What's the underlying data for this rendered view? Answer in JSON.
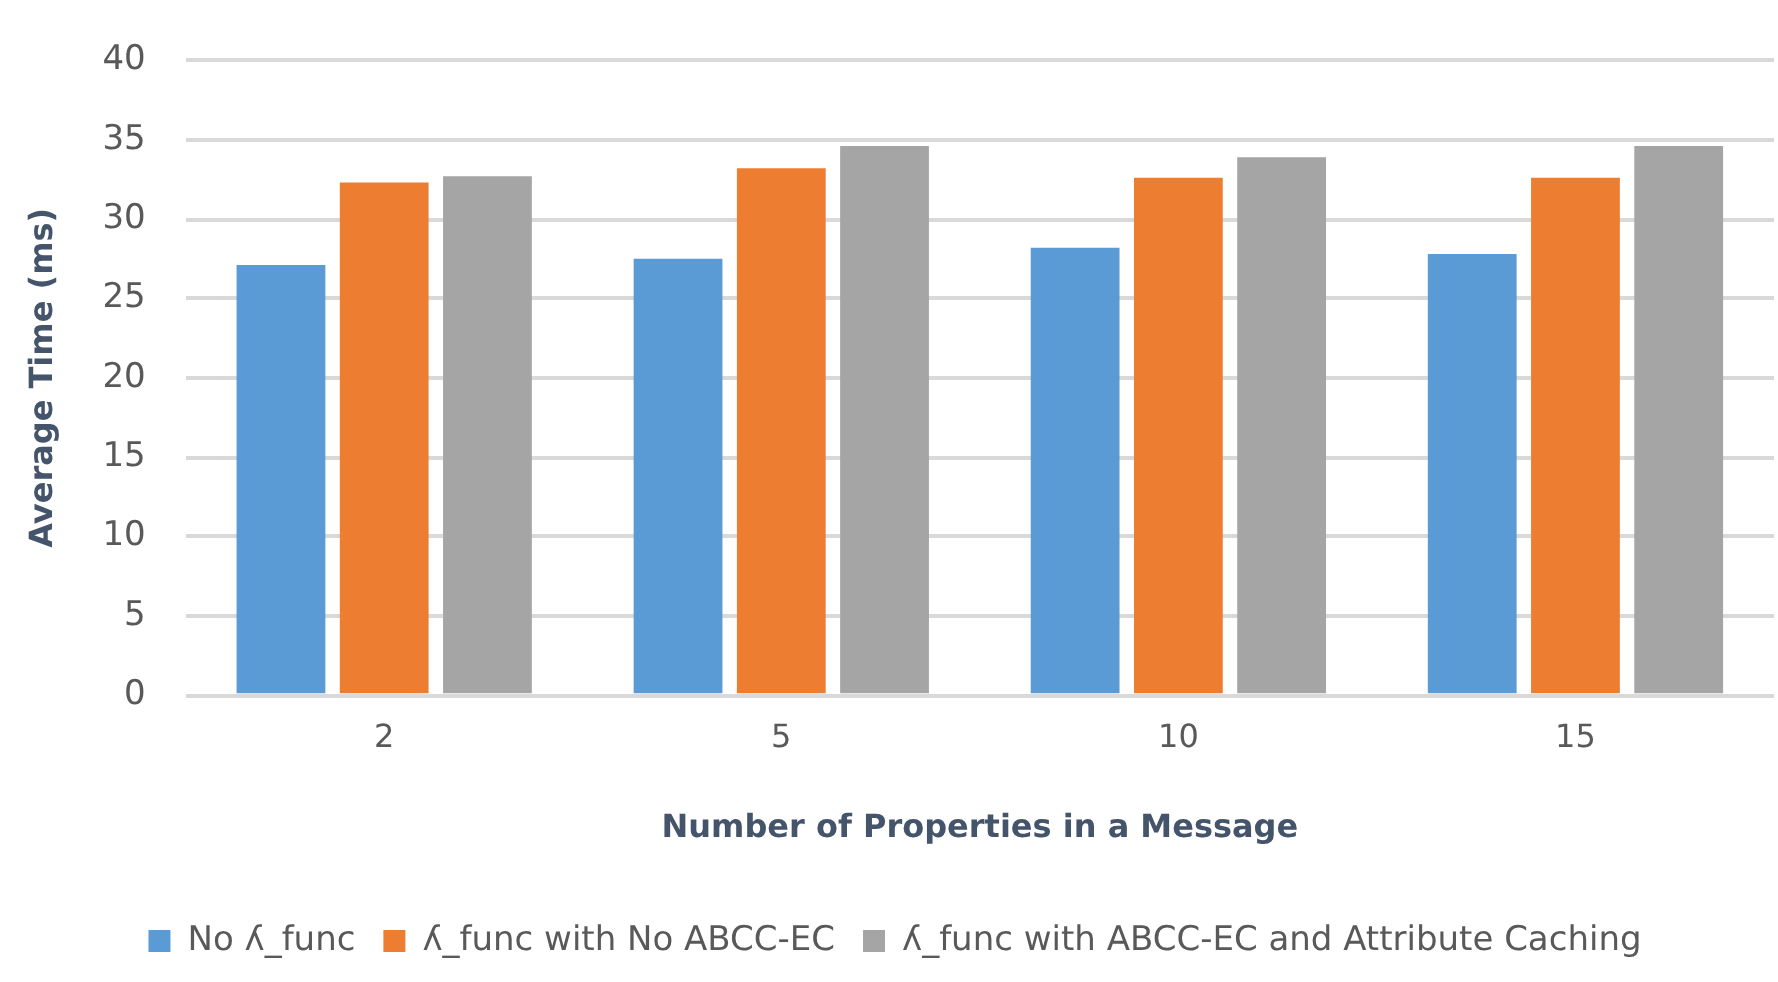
{
  "chart_data": {
    "type": "bar",
    "xlabel": "Number of Properties in a Message",
    "ylabel": "Average Time (ms)",
    "categories": [
      "2",
      "5",
      "10",
      "15"
    ],
    "series": [
      {
        "name": "No ʎ_func",
        "color": "#5b9bd5",
        "values": [
          27.1,
          27.5,
          28.2,
          27.8
        ]
      },
      {
        "name": "ʎ_func with No ABCC-EC",
        "color": "#ed7d31",
        "values": [
          32.3,
          33.2,
          32.6,
          32.6
        ]
      },
      {
        "name": "ʎ_func with ABCC-EC and Attribute Caching",
        "color": "#a5a5a5",
        "values": [
          32.7,
          34.6,
          33.9,
          34.6
        ]
      }
    ],
    "ylim": [
      0,
      40
    ],
    "yticks": [
      0,
      5,
      10,
      15,
      20,
      25,
      30,
      35,
      40
    ],
    "grid": "y",
    "legend": "bottom"
  }
}
